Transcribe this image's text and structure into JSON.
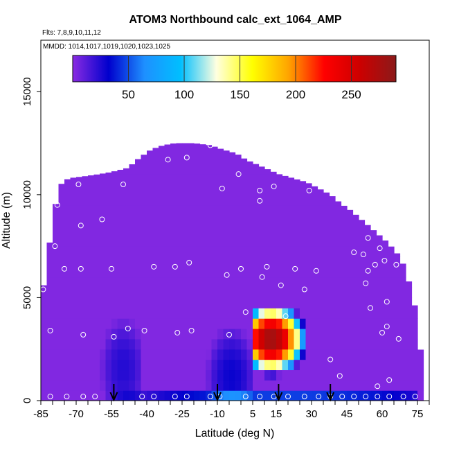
{
  "chart_data": {
    "type": "heatmap",
    "title": "ATOM3 Northbound calc_ext_1064_AMP",
    "subtitle_flights": "Flts: 7,8,9,10,11,12",
    "subtitle_dates": "MMDD: 1014,1017,1019,1020,1023,1025",
    "xlabel": "Latitude (deg N)",
    "ylabel": "Altitude (m)",
    "xlim": [
      -85,
      80
    ],
    "ylim": [
      0,
      17500
    ],
    "x_ticks": [
      -85,
      -70,
      -55,
      -40,
      -25,
      -10,
      5,
      15,
      30,
      45,
      60,
      75
    ],
    "y_ticks": [
      0,
      5000,
      10000,
      15000
    ],
    "colorbar": {
      "min": 0,
      "max": 290,
      "ticks": [
        50,
        100,
        150,
        200,
        250
      ],
      "colors": [
        "#8a2be2",
        "#0000cd",
        "#1e90ff",
        "#00bfff",
        "#ffffe0",
        "#ffff00",
        "#ffa500",
        "#ff0000",
        "#cc0000",
        "#8b1a1a"
      ]
    },
    "background_value": 2,
    "profile_top": [
      [
        -84,
        5400
      ],
      [
        -82,
        7000
      ],
      [
        -80,
        8800
      ],
      [
        -78,
        10000
      ],
      [
        -76,
        10600
      ],
      [
        -73,
        10800
      ],
      [
        -66,
        10900
      ],
      [
        -60,
        11000
      ],
      [
        -55,
        11100
      ],
      [
        -48,
        11300
      ],
      [
        -43,
        11800
      ],
      [
        -38,
        12200
      ],
      [
        -33,
        12400
      ],
      [
        -28,
        12500
      ],
      [
        -20,
        12500
      ],
      [
        -13,
        12400
      ],
      [
        -8,
        12200
      ],
      [
        -2,
        12000
      ],
      [
        2,
        11700
      ],
      [
        6,
        11500
      ],
      [
        10,
        11300
      ],
      [
        16,
        11000
      ],
      [
        22,
        10800
      ],
      [
        28,
        10600
      ],
      [
        33,
        10300
      ],
      [
        38,
        10000
      ],
      [
        42,
        9600
      ],
      [
        47,
        9200
      ],
      [
        52,
        8700
      ],
      [
        57,
        8200
      ],
      [
        62,
        7700
      ],
      [
        66,
        7200
      ],
      [
        69,
        6600
      ],
      [
        71,
        5900
      ],
      [
        73,
        5000
      ],
      [
        75,
        4000
      ],
      [
        76,
        2800
      ],
      [
        77,
        1500
      ],
      [
        78,
        0
      ]
    ],
    "plumes": [
      {
        "x0": 5,
        "x1": 36,
        "y0": 700,
        "y1": 4300,
        "peak": 280,
        "peak_x": 13,
        "peak_y": 3000
      },
      {
        "x0": -62,
        "x1": -42,
        "y0": 0,
        "y1": 5000,
        "peak": 22,
        "peak_x": -50,
        "peak_y": 1600
      },
      {
        "x0": -16,
        "x1": 6,
        "y0": 0,
        "y1": 5000,
        "peak": 28,
        "peak_x": -4,
        "peak_y": 1200
      },
      {
        "x0": -82,
        "x1": 76,
        "y0": 0,
        "y1": 800,
        "peak": 45,
        "peak_x": 20,
        "peak_y": 300
      }
    ],
    "points": [
      [
        -84,
        5400
      ],
      [
        -81,
        3400
      ],
      [
        -79,
        7500
      ],
      [
        -78,
        9500
      ],
      [
        -75,
        6400
      ],
      [
        -69,
        10500
      ],
      [
        -68,
        8500
      ],
      [
        -68,
        6400
      ],
      [
        -67,
        3200
      ],
      [
        -59,
        8800
      ],
      [
        -55,
        6400
      ],
      [
        -54,
        3100
      ],
      [
        -50,
        10500
      ],
      [
        -48,
        3500
      ],
      [
        -41,
        3400
      ],
      [
        -37,
        6500
      ],
      [
        -31,
        11700
      ],
      [
        -28,
        6500
      ],
      [
        -27,
        3300
      ],
      [
        -23,
        11800
      ],
      [
        -22,
        6700
      ],
      [
        -21,
        3400
      ],
      [
        -13,
        12400
      ],
      [
        -8,
        10300
      ],
      [
        -6,
        6100
      ],
      [
        -5,
        3200
      ],
      [
        -1,
        11000
      ],
      [
        0,
        6400
      ],
      [
        2,
        4300
      ],
      [
        8,
        10200
      ],
      [
        8,
        9700
      ],
      [
        9,
        6000
      ],
      [
        11,
        6500
      ],
      [
        14,
        10400
      ],
      [
        17,
        5600
      ],
      [
        19,
        4100
      ],
      [
        23,
        6400
      ],
      [
        27,
        5400
      ],
      [
        29,
        10200
      ],
      [
        32,
        6300
      ],
      [
        38,
        2000
      ],
      [
        42,
        1200
      ],
      [
        48,
        7200
      ],
      [
        52,
        7100
      ],
      [
        53,
        5700
      ],
      [
        54,
        6300
      ],
      [
        54,
        7900
      ],
      [
        55,
        4500
      ],
      [
        57,
        6600
      ],
      [
        58,
        700
      ],
      [
        59,
        7400
      ],
      [
        60,
        3300
      ],
      [
        61,
        6800
      ],
      [
        62,
        4800
      ],
      [
        62,
        3600
      ],
      [
        63,
        1000
      ],
      [
        65,
        8400
      ],
      [
        66,
        6600
      ],
      [
        67,
        3000
      ],
      [
        -81,
        200
      ],
      [
        -74,
        200
      ],
      [
        -67,
        200
      ],
      [
        -62,
        200
      ],
      [
        -42,
        200
      ],
      [
        -37,
        200
      ],
      [
        -28,
        200
      ],
      [
        -23,
        200
      ],
      [
        -13,
        200
      ],
      [
        -9,
        200
      ],
      [
        2,
        200
      ],
      [
        8,
        200
      ],
      [
        14,
        200
      ],
      [
        20,
        200
      ],
      [
        27,
        200
      ],
      [
        33,
        200
      ],
      [
        38,
        200
      ],
      [
        43,
        200
      ],
      [
        48,
        200
      ],
      [
        53,
        200
      ],
      [
        58,
        200
      ],
      [
        63,
        200
      ],
      [
        69,
        200
      ],
      [
        74,
        200
      ],
      [
        79,
        200
      ]
    ],
    "arrows_lat": [
      -54,
      -10,
      16,
      38
    ]
  }
}
